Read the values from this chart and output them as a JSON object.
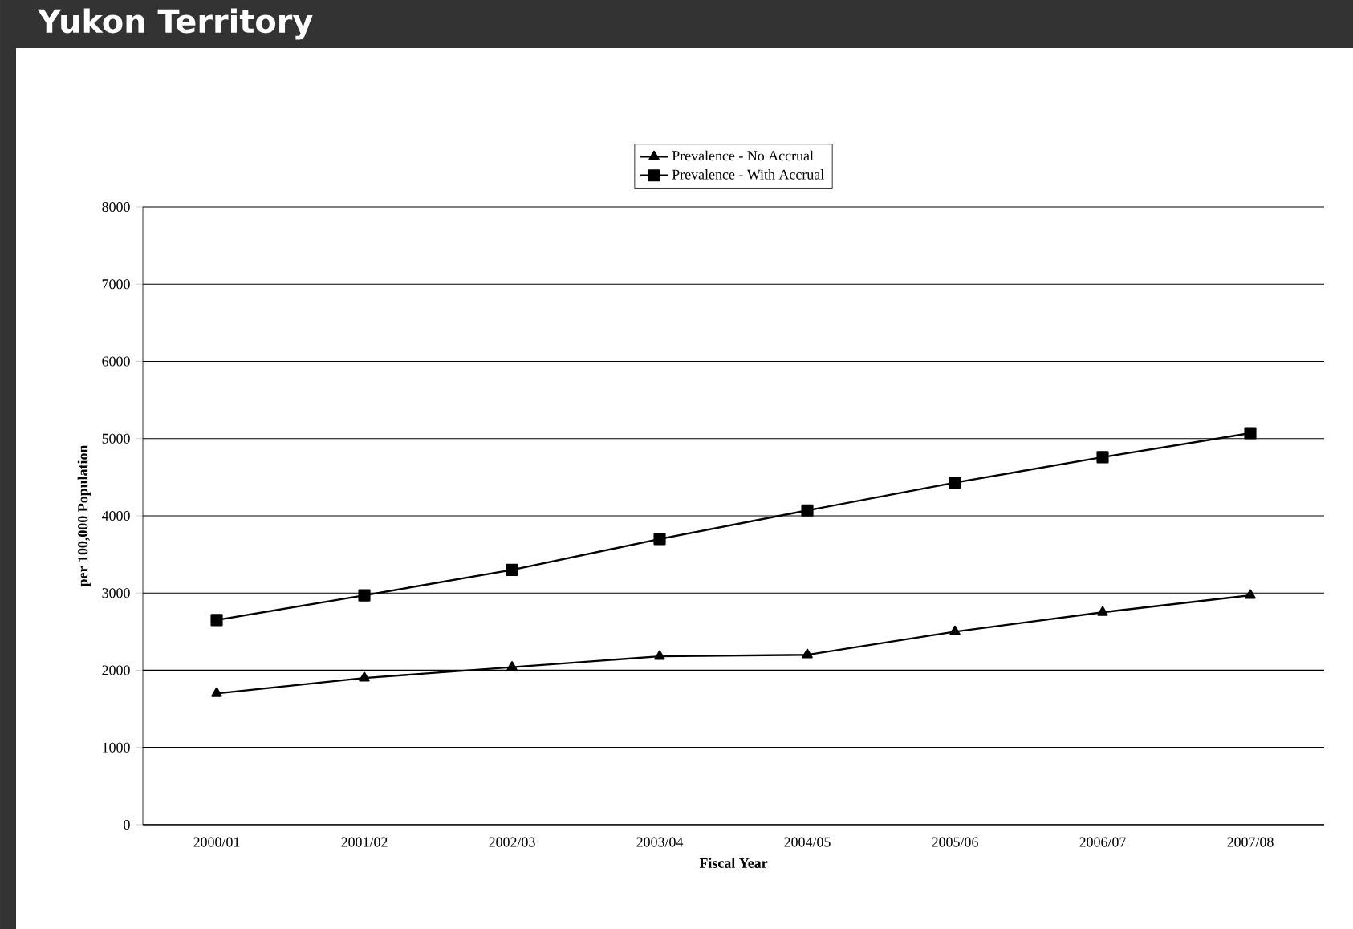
{
  "chart_data": {
    "type": "line",
    "title": "Yukon Territory",
    "xlabel": "Fiscal Year",
    "ylabel": "per 100,000 Population",
    "categories": [
      "2000/01",
      "2001/02",
      "2002/03",
      "2003/04",
      "2004/05",
      "2005/06",
      "2006/07",
      "2007/08"
    ],
    "series": [
      {
        "name": "Prevalence - No Accrual",
        "color": "#000000",
        "marker": "triangle",
        "values": [
          1700,
          1900,
          2040,
          2180,
          2200,
          2500,
          2750,
          2970
        ]
      },
      {
        "name": "Prevalence - With Accrual",
        "color": "#000000",
        "marker": "square",
        "values": [
          2650,
          2970,
          3300,
          3700,
          4070,
          4430,
          4760,
          5070
        ]
      }
    ],
    "ylim": [
      0,
      8000
    ],
    "yticks": [
      0,
      1000,
      2000,
      3000,
      4000,
      5000,
      6000,
      7000,
      8000
    ],
    "grid": "y",
    "legend": "top",
    "line_style": "solid"
  }
}
